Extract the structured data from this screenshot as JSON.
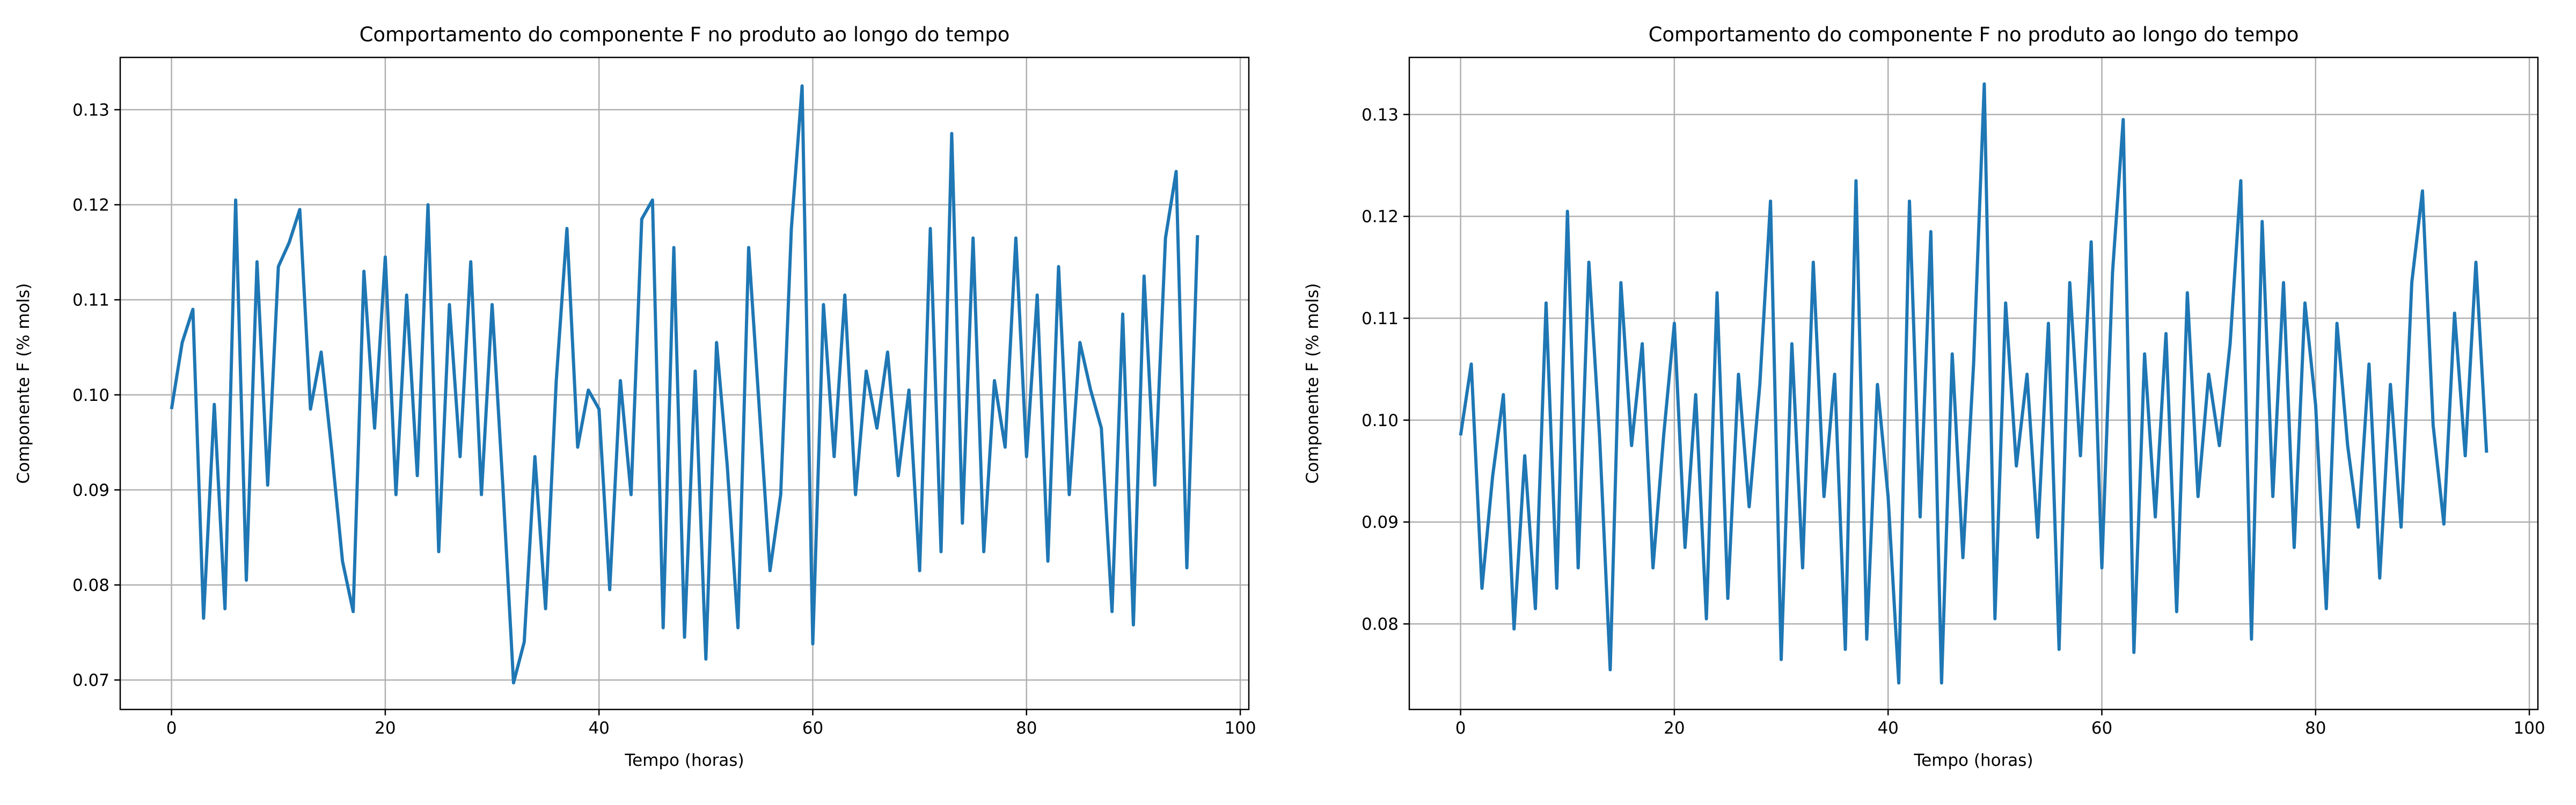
{
  "chart_data": [
    {
      "type": "line",
      "title": "Comportamento do componente F no produto ao longo do tempo",
      "xlabel": "Tempo (horas)",
      "ylabel": "Componente F (% mols)",
      "x": [
        0,
        1,
        2,
        3,
        4,
        5,
        6,
        7,
        8,
        9,
        10,
        11,
        12,
        13,
        14,
        15,
        16,
        17,
        18,
        19,
        20,
        21,
        22,
        23,
        24,
        25,
        26,
        27,
        28,
        29,
        30,
        31,
        32,
        33,
        34,
        35,
        36,
        37,
        38,
        39,
        40,
        41,
        42,
        43,
        44,
        45,
        46,
        47,
        48,
        49,
        50,
        51,
        52,
        53,
        54,
        55,
        56,
        57,
        58,
        59,
        60,
        61,
        62,
        63,
        64,
        65,
        66,
        67,
        68,
        69,
        70,
        71,
        72,
        73,
        74,
        75,
        76,
        77,
        78,
        79,
        80,
        81,
        82,
        83,
        84,
        85,
        86,
        87,
        88,
        89,
        90,
        91,
        92,
        93,
        94,
        95,
        96
      ],
      "series": [
        {
          "name": "Componente F",
          "color": "#1f77b4",
          "values": [
            0.0985,
            0.1055,
            0.109,
            0.0765,
            0.099,
            0.0775,
            0.1205,
            0.0805,
            0.114,
            0.0905,
            0.1135,
            0.116,
            0.1195,
            0.0985,
            0.1045,
            0.094,
            0.0825,
            0.0772,
            0.113,
            0.0965,
            0.1145,
            0.0895,
            0.1105,
            0.0915,
            0.12,
            0.0835,
            0.1095,
            0.0935,
            0.114,
            0.0895,
            0.1095,
            0.0905,
            0.0697,
            0.074,
            0.0935,
            0.0775,
            0.1015,
            0.1175,
            0.0945,
            0.1005,
            0.0985,
            0.0795,
            0.1015,
            0.0895,
            0.1185,
            0.1205,
            0.0755,
            0.1155,
            0.0745,
            0.1025,
            0.0722,
            0.1055,
            0.0925,
            0.0755,
            0.1155,
            0.0985,
            0.0815,
            0.0895,
            0.1175,
            0.1325,
            0.0738,
            0.1095,
            0.0935,
            0.1105,
            0.0895,
            0.1025,
            0.0965,
            0.1045,
            0.0915,
            0.1005,
            0.0815,
            0.1175,
            0.0835,
            0.1275,
            0.0865,
            0.1165,
            0.0835,
            0.1015,
            0.0945,
            0.1165,
            0.0935,
            0.1105,
            0.0825,
            0.1135,
            0.0895,
            0.1055,
            0.1005,
            0.0965,
            0.0772,
            0.1085,
            0.0758,
            0.1125,
            0.0905,
            0.1165,
            0.1235,
            0.0818,
            0.1168
          ]
        }
      ],
      "xlim": [
        -4.8,
        100.8
      ],
      "xticks": [
        0,
        20,
        40,
        60,
        80,
        100
      ],
      "ylim": [
        0.0669,
        0.1355
      ],
      "yticks": [
        0.07,
        0.08,
        0.09,
        {
          "value": 0.1,
          "label": "0.10"
        },
        0.11,
        0.12,
        0.13
      ],
      "grid": true
    },
    {
      "type": "line",
      "title": "Comportamento do componente F no produto ao longo do tempo",
      "xlabel": "Tempo (horas)",
      "ylabel": "Componente F (% mols)",
      "x": [
        0,
        1,
        2,
        3,
        4,
        5,
        6,
        7,
        8,
        9,
        10,
        11,
        12,
        13,
        14,
        15,
        16,
        17,
        18,
        19,
        20,
        21,
        22,
        23,
        24,
        25,
        26,
        27,
        28,
        29,
        30,
        31,
        32,
        33,
        34,
        35,
        36,
        37,
        38,
        39,
        40,
        41,
        42,
        43,
        44,
        45,
        46,
        47,
        48,
        49,
        50,
        51,
        52,
        53,
        54,
        55,
        56,
        57,
        58,
        59,
        60,
        61,
        62,
        63,
        64,
        65,
        66,
        67,
        68,
        69,
        70,
        71,
        72,
        73,
        74,
        75,
        76,
        77,
        78,
        79,
        80,
        81,
        82,
        83,
        84,
        85,
        86,
        87,
        88,
        89,
        90,
        91,
        92,
        93,
        94,
        95,
        96
      ],
      "series": [
        {
          "name": "Componente F",
          "color": "#1f77b4",
          "values": [
            0.0985,
            0.1055,
            0.0835,
            0.0945,
            0.1025,
            0.0795,
            0.0965,
            0.0815,
            0.1115,
            0.0835,
            0.1205,
            0.0855,
            0.1155,
            0.0985,
            0.0755,
            0.1135,
            0.0975,
            0.1075,
            0.0855,
            0.0985,
            0.1095,
            0.0875,
            0.1025,
            0.0805,
            0.1125,
            0.0825,
            0.1045,
            0.0915,
            0.1035,
            0.1215,
            0.0765,
            0.1075,
            0.0855,
            0.1155,
            0.0925,
            0.1045,
            0.0775,
            0.1235,
            0.0785,
            0.1035,
            0.0925,
            0.0742,
            0.1215,
            0.0905,
            0.1185,
            0.0742,
            0.1065,
            0.0865,
            0.1055,
            0.133,
            0.0805,
            0.1115,
            0.0955,
            0.1045,
            0.0885,
            0.1095,
            0.0775,
            0.1135,
            0.0965,
            0.1175,
            0.0855,
            0.1145,
            0.1295,
            0.0772,
            0.1065,
            0.0905,
            0.1085,
            0.0812,
            0.1125,
            0.0925,
            0.1045,
            0.0975,
            0.1075,
            0.1235,
            0.0785,
            0.1195,
            0.0925,
            0.1135,
            0.0875,
            0.1115,
            0.1015,
            0.0815,
            0.1095,
            0.0975,
            0.0895,
            0.1055,
            0.0845,
            0.1035,
            0.0895,
            0.1135,
            0.1225,
            0.0995,
            0.0898,
            0.1105,
            0.0965,
            0.1155,
            0.0968
          ]
        }
      ],
      "xlim": [
        -4.8,
        100.8
      ],
      "xticks": [
        0,
        20,
        40,
        60,
        80,
        100
      ],
      "ylim": [
        0.0716,
        0.1356
      ],
      "yticks": [
        0.08,
        0.09,
        {
          "value": 0.1,
          "label": "0.10"
        },
        0.11,
        0.12,
        0.13
      ],
      "grid": true
    }
  ]
}
